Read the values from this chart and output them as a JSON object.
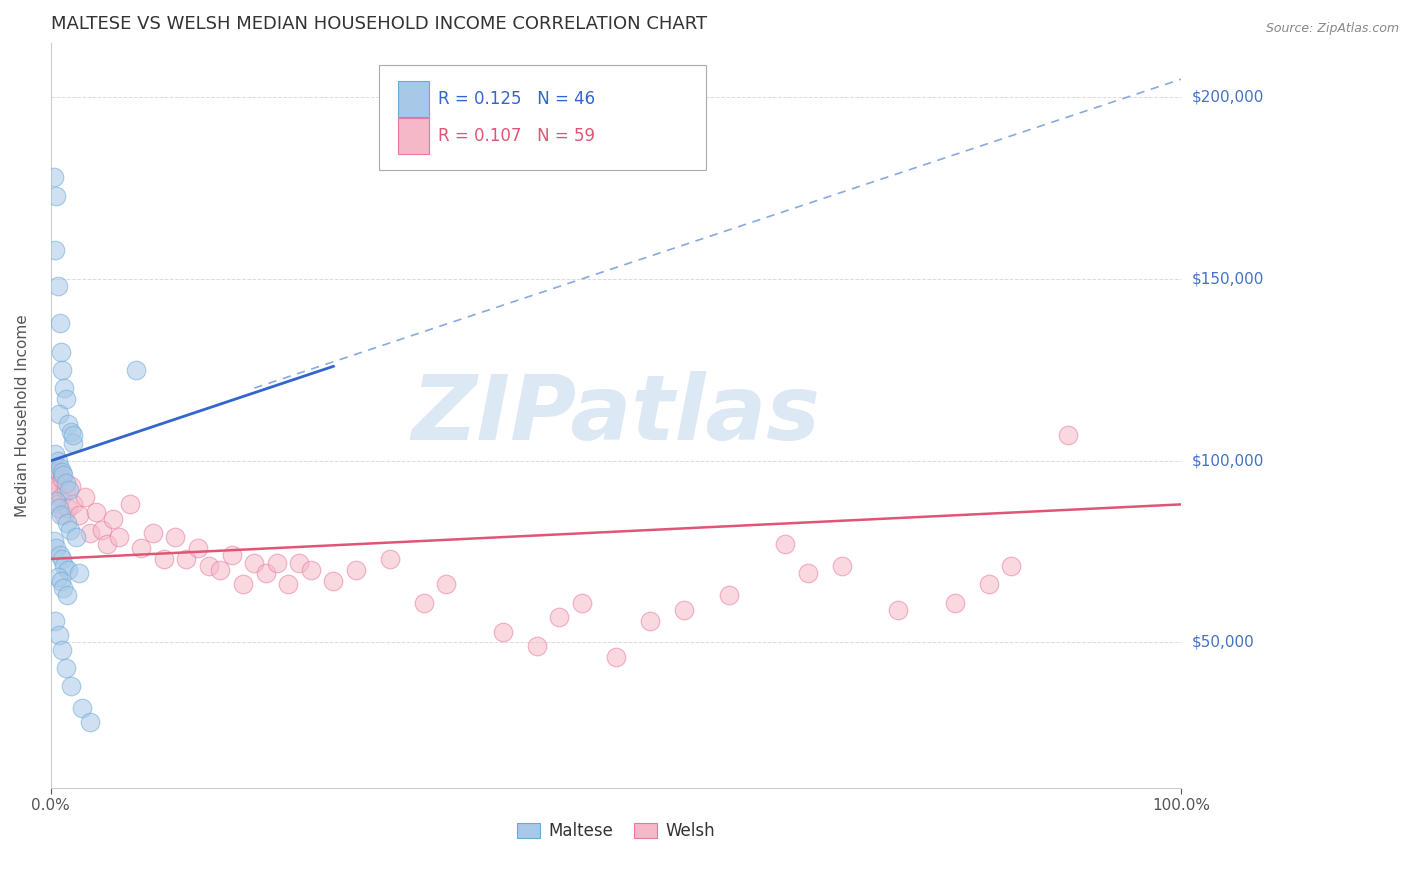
{
  "title": "MALTESE VS WELSH MEDIAN HOUSEHOLD INCOME CORRELATION CHART",
  "source_text": "Source: ZipAtlas.com",
  "ylabel": "Median Household Income",
  "xlim": [
    0.0,
    100.0
  ],
  "ylim": [
    10000,
    215000
  ],
  "yticks": [
    50000,
    100000,
    150000,
    200000
  ],
  "ytick_labels": [
    "$50,000",
    "$100,000",
    "$150,000",
    "$200,000"
  ],
  "xticks": [
    0.0,
    100.0
  ],
  "xtick_labels": [
    "0.0%",
    "100.0%"
  ],
  "background_color": "#ffffff",
  "grid_color": "#cccccc",
  "maltese_color": "#a8c8e8",
  "maltese_edge_color": "#6aaad4",
  "welsh_color": "#f5b8c8",
  "welsh_edge_color": "#e878a0",
  "maltese_line_color": "#3366cc",
  "welsh_line_color": "#e05575",
  "dashed_line_color": "#88aadd",
  "legend_R_maltese": "R = 0.125",
  "legend_N_maltese": "N = 46",
  "legend_R_welsh": "R = 0.107",
  "legend_N_welsh": "N = 59",
  "maltese_scatter_x": [
    0.3,
    0.5,
    0.4,
    0.6,
    0.8,
    0.9,
    1.0,
    1.2,
    1.3,
    0.7,
    1.5,
    1.8,
    2.0,
    0.4,
    0.6,
    0.8,
    1.0,
    1.1,
    1.3,
    1.6,
    0.5,
    0.7,
    0.9,
    1.4,
    1.7,
    2.2,
    0.3,
    0.5,
    0.8,
    1.0,
    1.2,
    1.5,
    2.5,
    0.6,
    0.9,
    1.1,
    1.4,
    7.5,
    0.4,
    0.7,
    1.0,
    1.3,
    1.8,
    2.8,
    3.5,
    2.0
  ],
  "maltese_scatter_y": [
    178000,
    173000,
    158000,
    148000,
    138000,
    130000,
    125000,
    120000,
    117000,
    113000,
    110000,
    108000,
    105000,
    102000,
    100000,
    98000,
    97000,
    96000,
    94000,
    92000,
    89000,
    87000,
    85000,
    83000,
    81000,
    79000,
    78000,
    76000,
    74000,
    73000,
    71000,
    70000,
    69000,
    68000,
    67000,
    65000,
    63000,
    125000,
    56000,
    52000,
    48000,
    43000,
    38000,
    32000,
    28000,
    107000
  ],
  "welsh_scatter_x": [
    0.3,
    0.4,
    0.5,
    0.6,
    0.5,
    0.7,
    0.9,
    1.0,
    1.2,
    1.3,
    1.5,
    1.8,
    2.0,
    2.5,
    3.0,
    3.5,
    4.0,
    4.5,
    5.0,
    5.5,
    6.0,
    7.0,
    8.0,
    9.0,
    10.0,
    11.0,
    12.0,
    13.0,
    14.0,
    15.0,
    16.0,
    17.0,
    18.0,
    19.0,
    20.0,
    21.0,
    22.0,
    23.0,
    25.0,
    27.0,
    30.0,
    33.0,
    35.0,
    40.0,
    43.0,
    45.0,
    47.0,
    50.0,
    53.0,
    56.0,
    60.0,
    65.0,
    67.0,
    70.0,
    75.0,
    80.0,
    83.0,
    85.0,
    90.0
  ],
  "welsh_scatter_y": [
    95000,
    92000,
    98000,
    88000,
    93000,
    97000,
    90000,
    95000,
    85000,
    92000,
    87000,
    93000,
    88000,
    85000,
    90000,
    80000,
    86000,
    81000,
    77000,
    84000,
    79000,
    88000,
    76000,
    80000,
    73000,
    79000,
    73000,
    76000,
    71000,
    70000,
    74000,
    66000,
    72000,
    69000,
    72000,
    66000,
    72000,
    70000,
    67000,
    70000,
    73000,
    61000,
    66000,
    53000,
    49000,
    57000,
    61000,
    46000,
    56000,
    59000,
    63000,
    77000,
    69000,
    71000,
    59000,
    61000,
    66000,
    71000,
    107000
  ],
  "maltese_trend_x": [
    0.0,
    25.0
  ],
  "maltese_trend_y": [
    100000,
    126000
  ],
  "welsh_trend_x": [
    0.0,
    100.0
  ],
  "welsh_trend_y": [
    73000,
    88000
  ],
  "dashed_trend_x": [
    18.0,
    100.0
  ],
  "dashed_trend_y": [
    120000,
    205000
  ],
  "watermark_text": "ZIPatlas",
  "watermark_color": "#dde8f5",
  "watermark_fontsize": 65,
  "title_fontsize": 13,
  "label_fontsize": 11,
  "tick_fontsize": 11,
  "legend_fontsize": 12,
  "right_label_color": "#4472c4"
}
